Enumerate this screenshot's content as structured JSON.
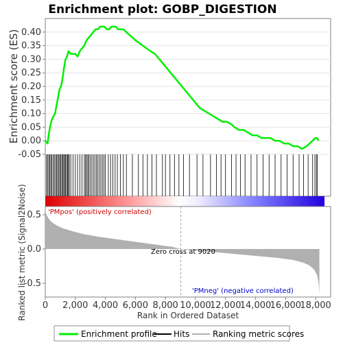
{
  "chart_data": {
    "type": "line",
    "title": "Enrichment plot: GOBP_DIGESTION",
    "panels": {
      "enrichment": {
        "ylabel": "Enrichment score (ES)",
        "ylim": [
          -0.05,
          0.45
        ],
        "yticks": [
          "0.40",
          "0.35",
          "0.30",
          "0.25",
          "0.20",
          "0.15",
          "0.10",
          "0.05",
          "0.00",
          "-0.05"
        ],
        "ytick_values": [
          0.4,
          0.35,
          0.3,
          0.25,
          0.2,
          0.15,
          0.1,
          0.05,
          0.0,
          -0.05
        ],
        "series": [
          {
            "name": "Enrichment profile",
            "x": [
              0,
              150,
              250,
              350,
              450,
              550,
              650,
              750,
              850,
              950,
              1050,
              1150,
              1250,
              1350,
              1450,
              1550,
              1700,
              1850,
              2000,
              2150,
              2300,
              2450,
              2600,
              2750,
              2900,
              3050,
              3200,
              3350,
              3500,
              3650,
              3800,
              3950,
              4100,
              4250,
              4400,
              4550,
              4700,
              4850,
              5000,
              5200,
              5400,
              5600,
              5800,
              6000,
              6250,
              6500,
              6750,
              7000,
              7300,
              7600,
              7900,
              8200,
              8500,
              8800,
              9100,
              9400,
              9700,
              10000,
              10300,
              10600,
              10900,
              11200,
              11500,
              11800,
              12100,
              12400,
              12600,
              12900,
              13200,
              13500,
              13800,
              14100,
              14400,
              14700,
              15000,
              15300,
              15600,
              15900,
              16200,
              16500,
              16800,
              17100,
              17400,
              17600,
              17800,
              17950,
              18100,
              18200
            ],
            "y": [
              0.0,
              -0.01,
              0.03,
              0.06,
              0.08,
              0.09,
              0.1,
              0.13,
              0.16,
              0.19,
              0.2,
              0.23,
              0.27,
              0.3,
              0.31,
              0.33,
              0.32,
              0.32,
              0.32,
              0.31,
              0.33,
              0.34,
              0.35,
              0.37,
              0.38,
              0.39,
              0.4,
              0.41,
              0.41,
              0.42,
              0.42,
              0.42,
              0.41,
              0.41,
              0.42,
              0.42,
              0.42,
              0.41,
              0.41,
              0.41,
              0.4,
              0.39,
              0.38,
              0.37,
              0.36,
              0.35,
              0.34,
              0.33,
              0.32,
              0.3,
              0.28,
              0.26,
              0.24,
              0.22,
              0.2,
              0.18,
              0.16,
              0.14,
              0.12,
              0.11,
              0.1,
              0.09,
              0.08,
              0.07,
              0.07,
              0.06,
              0.05,
              0.04,
              0.04,
              0.03,
              0.02,
              0.02,
              0.01,
              0.01,
              0.01,
              0.0,
              0.0,
              -0.01,
              -0.01,
              -0.02,
              -0.02,
              -0.03,
              -0.02,
              -0.01,
              0.0,
              0.01,
              0.01,
              0.0
            ]
          }
        ]
      },
      "ranked_metric": {
        "ylabel": "Ranked list metric (Signal2Noise)",
        "xlabel": "Rank in Ordered Dataset",
        "ylim": [
          -0.7,
          0.62
        ],
        "yticks": [
          "0.5",
          "0.0",
          "-0.5"
        ],
        "ytick_values": [
          0.5,
          0.0,
          -0.5
        ],
        "xticks": [
          "0",
          "2,000",
          "4,000",
          "6,000",
          "8,000",
          "10,000",
          "12,000",
          "14,000",
          "16,000",
          "18,000"
        ],
        "xtick_values": [
          0,
          2000,
          4000,
          6000,
          8000,
          10000,
          12000,
          14000,
          16000,
          18000
        ],
        "zero_cross_rank": 9020,
        "zero_cross_label": "Zero cross at 9020",
        "pos_label": "'PMpos' (positively correlated)",
        "neg_label": "'PMneg' (negative correlated)",
        "metric_curve": {
          "x": [
            0,
            50,
            150,
            300,
            500,
            800,
            1200,
            1800,
            2500,
            3500,
            4500,
            5500,
            6500,
            7500,
            8500,
            9020,
            9500,
            10500,
            11500,
            12500,
            13500,
            14500,
            15500,
            16500,
            17200,
            17600,
            17900,
            18100,
            18200,
            18250
          ],
          "y": [
            0.6,
            0.52,
            0.47,
            0.42,
            0.38,
            0.34,
            0.3,
            0.26,
            0.22,
            0.18,
            0.15,
            0.12,
            0.09,
            0.06,
            0.03,
            0.0,
            -0.01,
            -0.03,
            -0.05,
            -0.07,
            -0.09,
            -0.11,
            -0.13,
            -0.16,
            -0.2,
            -0.24,
            -0.3,
            -0.38,
            -0.5,
            -0.65
          ]
        }
      }
    },
    "xlim": [
      0,
      19000
    ],
    "hits": [
      80,
      150,
      230,
      300,
      370,
      440,
      520,
      600,
      680,
      750,
      820,
      900,
      960,
      1030,
      1100,
      1160,
      1230,
      1290,
      1350,
      1420,
      1480,
      1540,
      1600,
      1700,
      1850,
      2000,
      2150,
      2300,
      2450,
      2600,
      2680,
      2750,
      2830,
      2900,
      3000,
      3100,
      3200,
      3300,
      3400,
      3500,
      3600,
      3700,
      3800,
      3900,
      4000,
      4200,
      4350,
      4500,
      4650,
      4800,
      5000,
      5200,
      5400,
      5800,
      6200,
      6500,
      6800,
      7100,
      7400,
      7800,
      8000,
      8300,
      8600,
      8900,
      9200,
      9600,
      10100,
      10500,
      11000,
      11400,
      11700,
      12000,
      12400,
      12700,
      13000,
      13300,
      13700,
      14100,
      14500,
      14900,
      15300,
      15700,
      16100,
      16500,
      16900,
      17200,
      17500,
      17800,
      17950,
      18050,
      18120
    ],
    "colors": {
      "enrichment_line": "#00ee00",
      "hits": "#000000",
      "metric_fill": "#b0b0b0",
      "zero_cross_line": "#a0a0a0",
      "pos_label": "#cc0000",
      "neg_label": "#0000cc",
      "background": "#ffffff",
      "frame": "#808080",
      "gradient_pos": "#dd0000",
      "gradient_mid": "#ffffff",
      "gradient_neg": "#2200dd"
    },
    "legend": {
      "placement": "bottom",
      "items": [
        {
          "label": "Enrichment profile",
          "color": "#00ee00"
        },
        {
          "label": "Hits",
          "color": "#000000"
        },
        {
          "label": "Ranking metric scores",
          "color": "#b0b0b0"
        }
      ]
    }
  }
}
